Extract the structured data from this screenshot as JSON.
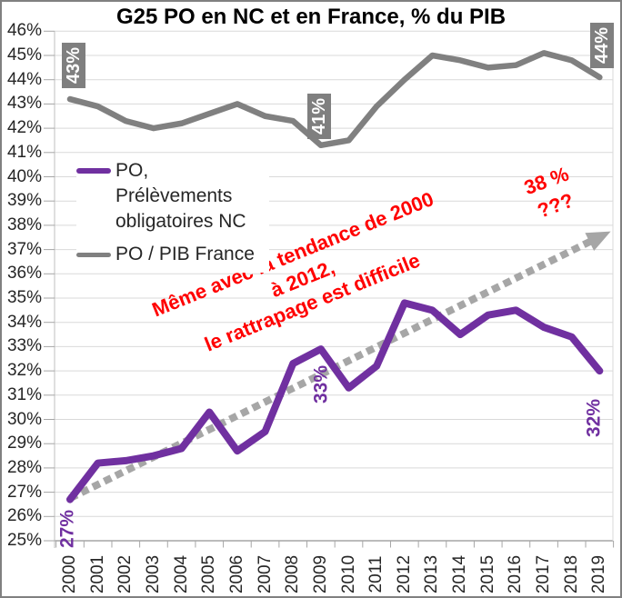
{
  "title": "G25  PO en NC et en France, % du PIB",
  "colors": {
    "purple": "#7030A0",
    "gray_line": "#808080",
    "label_box": "#7f7f7f",
    "trend": "#a6a6a6",
    "red": "#FF0000",
    "gridline": "#d9d9d9",
    "axis": "#a6a6a6",
    "axis_line": "#bfbfbf",
    "text": "#262626"
  },
  "legend": {
    "items": [
      {
        "lines": [
          "PO,",
          "Prélèvements",
          "obligatoires NC"
        ]
      },
      {
        "lines": [
          "PO / PIB France"
        ]
      }
    ]
  },
  "chart_data": {
    "type": "line",
    "title": "G25  PO en NC et en France, % du PIB",
    "x": [
      2000,
      2001,
      2002,
      2003,
      2004,
      2005,
      2006,
      2007,
      2008,
      2009,
      2010,
      2011,
      2012,
      2013,
      2014,
      2015,
      2016,
      2017,
      2018,
      2019
    ],
    "series": [
      {
        "name": "PO, Prélèvements obligatoires NC",
        "color": "#7030A0",
        "width": 8,
        "values": [
          26.7,
          28.2,
          28.3,
          28.5,
          28.8,
          30.3,
          28.7,
          29.5,
          32.3,
          32.9,
          31.3,
          32.2,
          34.8,
          34.5,
          33.5,
          34.3,
          34.5,
          33.8,
          33.4,
          32.0
        ]
      },
      {
        "name": "PO / PIB France",
        "color": "#808080",
        "width": 6.5,
        "values": [
          43.2,
          42.9,
          42.3,
          42.0,
          42.2,
          42.6,
          43.0,
          42.5,
          42.3,
          41.3,
          41.5,
          42.9,
          44.0,
          45.0,
          44.8,
          44.5,
          44.6,
          45.1,
          44.8,
          44.1
        ]
      }
    ],
    "trendline": {
      "description": "dotted arrow, tendance 2000-2012 extrapolated",
      "color": "#a6a6a6",
      "from": {
        "year": 2000,
        "value": 26.75
      },
      "to": {
        "year": 2019.4,
        "value": 37.75
      }
    },
    "annotations": [
      {
        "name": "label-france-2000",
        "text": "43%",
        "style": "gray-box",
        "year": 2000.12,
        "value": 44.6,
        "rotation": -90
      },
      {
        "name": "label-france-2009",
        "text": "41%",
        "style": "gray-box",
        "year": 2008.95,
        "value": 42.5,
        "rotation": -90
      },
      {
        "name": "label-france-2019",
        "text": "44%",
        "style": "gray-box",
        "year": 2019.08,
        "value": 45.4,
        "rotation": -90
      },
      {
        "name": "label-nc-2000",
        "text": "27%",
        "style": "purple-label",
        "year": 1999.9,
        "value": 25.5,
        "rotation": -90
      },
      {
        "name": "label-nc-2009",
        "text": "33%",
        "style": "purple-label",
        "year": 2009.0,
        "value": 31.45,
        "rotation": -90
      },
      {
        "name": "label-nc-2019",
        "text": "32%",
        "style": "purple-label",
        "year": 2018.8,
        "value": 30.05,
        "rotation": -90
      },
      {
        "name": "note-trend",
        "text": "Même avec la tendance de 2000 à 2012,\nle rattrapage est difficile",
        "style": "red-note",
        "year": 2008.35,
        "value": 35.8,
        "rotation": -22
      },
      {
        "name": "note-target",
        "text": "38 %\n???",
        "style": "red-note",
        "year": 2017.25,
        "value": 39.3,
        "rotation": -20
      }
    ],
    "ylim": [
      25,
      46
    ],
    "ytick_step": 1,
    "yaxis_format": "percent",
    "grid": "horizontal",
    "legend_position": "upper-left-inside"
  }
}
